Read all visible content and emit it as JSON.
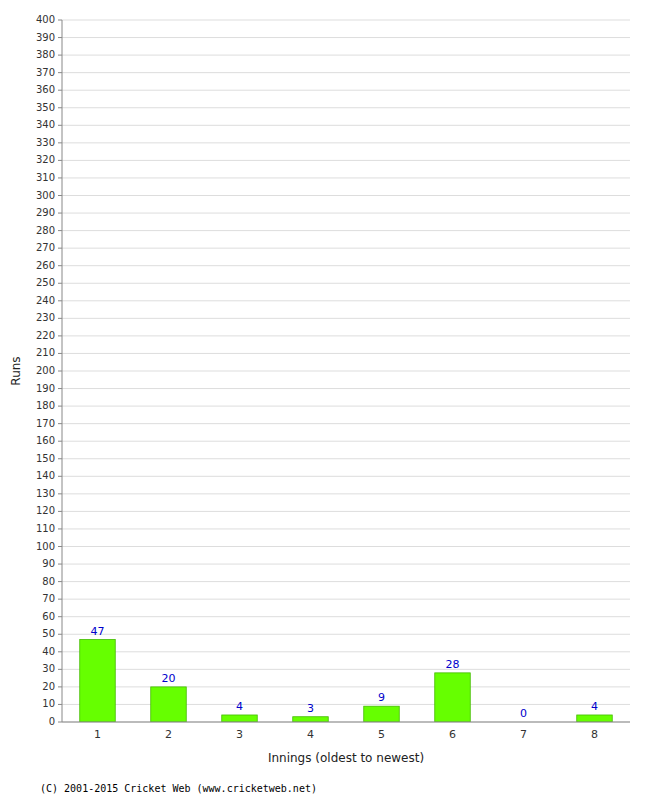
{
  "chart_data": {
    "type": "bar",
    "categories": [
      "1",
      "2",
      "3",
      "4",
      "5",
      "6",
      "7",
      "8"
    ],
    "values": [
      47,
      20,
      4,
      3,
      9,
      28,
      0,
      4
    ],
    "color": "#66ff00",
    "xlabel": "Innings (oldest to newest)",
    "ylabel": "Runs",
    "ylim": [
      0,
      400
    ],
    "yticks": [
      0,
      10,
      20,
      30,
      40,
      50,
      60,
      70,
      80,
      90,
      100,
      110,
      120,
      130,
      140,
      150,
      160,
      170,
      180,
      190,
      200,
      210,
      220,
      230,
      240,
      250,
      260,
      270,
      280,
      290,
      300,
      310,
      320,
      330,
      340,
      350,
      360,
      370,
      380,
      390,
      400
    ],
    "grid": true,
    "data_labels": true,
    "annotations": [
      "(C) 2001-2015 Cricket Web (www.cricketweb.net)"
    ]
  }
}
